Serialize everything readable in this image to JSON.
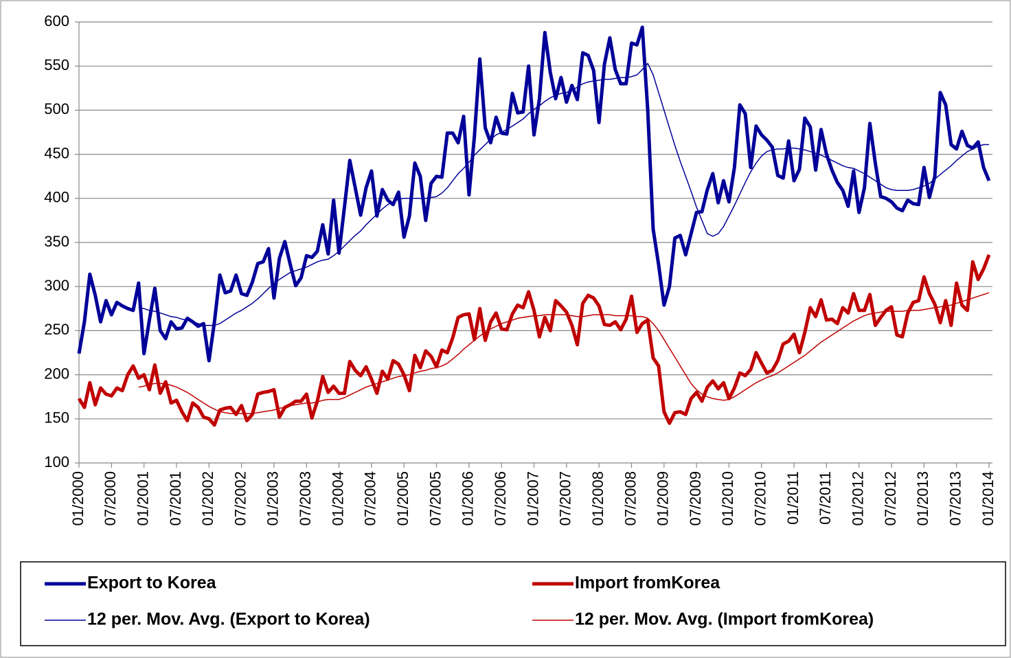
{
  "chart_data": {
    "type": "line",
    "categories": [
      "01/2000",
      null,
      null,
      null,
      null,
      null,
      "07/2000",
      null,
      null,
      null,
      null,
      null,
      "01/2001",
      null,
      null,
      null,
      null,
      null,
      "07/2001",
      null,
      null,
      null,
      null,
      null,
      "01/2002",
      null,
      null,
      null,
      null,
      null,
      "07/2002",
      null,
      null,
      null,
      null,
      null,
      "01/2003",
      null,
      null,
      null,
      null,
      null,
      "07/2003",
      null,
      null,
      null,
      null,
      null,
      "01/2004",
      null,
      null,
      null,
      null,
      null,
      "07/2004",
      null,
      null,
      null,
      null,
      null,
      "01/2005",
      null,
      null,
      null,
      null,
      null,
      "07/2005",
      null,
      null,
      null,
      null,
      null,
      "01/2006",
      null,
      null,
      null,
      null,
      null,
      "07/2006",
      null,
      null,
      null,
      null,
      null,
      "01/2007",
      null,
      null,
      null,
      null,
      null,
      "07/2007",
      null,
      null,
      null,
      null,
      null,
      "01/2008",
      null,
      null,
      null,
      null,
      null,
      "07/2008",
      null,
      null,
      null,
      null,
      null,
      "01/2009",
      null,
      null,
      null,
      null,
      null,
      "07/2009",
      null,
      null,
      null,
      null,
      null,
      "01/2010",
      null,
      null,
      null,
      null,
      null,
      "07/2010",
      null,
      null,
      null,
      null,
      null,
      "01/2011",
      null,
      null,
      null,
      null,
      null,
      "07/2011",
      null,
      null,
      null,
      null,
      null,
      "01/2012",
      null,
      null,
      null,
      null,
      null,
      "07/2012",
      null,
      null,
      null,
      null,
      null,
      "01/2013",
      null,
      null,
      null,
      null,
      null,
      "07/2013",
      null,
      null,
      null,
      null,
      null,
      "01/2014"
    ],
    "series": [
      {
        "name": "Export to Korea",
        "color": "#000099",
        "values": [
          224,
          260,
          314,
          290,
          260,
          284,
          268,
          282,
          278,
          275,
          273,
          304,
          224,
          262,
          298,
          250,
          241,
          260,
          252,
          253,
          264,
          260,
          255,
          258,
          216,
          260,
          313,
          293,
          295,
          313,
          292,
          290,
          305,
          326,
          328,
          343,
          287,
          332,
          351,
          325,
          301,
          310,
          335,
          333,
          340,
          370,
          337,
          398,
          338,
          390,
          443,
          412,
          381,
          412,
          431,
          380,
          410,
          398,
          393,
          407,
          356,
          380,
          440,
          425,
          375,
          417,
          425,
          424,
          474,
          474,
          463,
          493,
          404,
          470,
          558,
          480,
          463,
          492,
          474,
          473,
          519,
          497,
          498,
          550,
          472,
          513,
          588,
          543,
          513,
          537,
          509,
          528,
          512,
          565,
          562,
          545,
          486,
          552,
          582,
          546,
          530,
          530,
          576,
          574,
          594,
          500,
          365,
          325,
          279,
          300,
          355,
          358,
          336,
          360,
          384,
          385,
          410,
          428,
          395,
          420,
          396,
          435,
          506,
          496,
          435,
          482,
          472,
          466,
          458,
          426,
          423,
          465,
          420,
          433,
          491,
          481,
          432,
          478,
          450,
          432,
          418,
          409,
          391,
          431,
          384,
          412,
          485,
          440,
          402,
          400,
          396,
          389,
          386,
          398,
          394,
          393,
          435,
          401,
          425,
          520,
          506,
          461,
          456,
          476,
          460,
          457,
          464,
          435,
          420
        ]
      },
      {
        "name": "Import fromKorea",
        "color": "#c00000",
        "values": [
          173,
          163,
          191,
          166,
          185,
          178,
          176,
          185,
          182,
          200,
          210,
          196,
          200,
          183,
          211,
          179,
          192,
          168,
          171,
          158,
          148,
          168,
          163,
          152,
          150,
          143,
          160,
          162,
          163,
          155,
          165,
          148,
          155,
          178,
          180,
          181,
          183,
          152,
          163,
          166,
          170,
          170,
          178,
          151,
          170,
          198,
          180,
          187,
          179,
          179,
          215,
          205,
          199,
          209,
          195,
          179,
          204,
          195,
          216,
          212,
          200,
          182,
          222,
          208,
          227,
          221,
          209,
          228,
          225,
          242,
          265,
          268,
          269,
          240,
          275,
          239,
          260,
          270,
          252,
          251,
          269,
          279,
          276,
          294,
          273,
          243,
          265,
          250,
          284,
          278,
          271,
          256,
          234,
          281,
          290,
          287,
          278,
          257,
          256,
          260,
          251,
          263,
          289,
          248,
          258,
          262,
          219,
          210,
          158,
          145,
          157,
          158,
          155,
          173,
          180,
          170,
          186,
          193,
          184,
          191,
          173,
          185,
          202,
          199,
          206,
          225,
          213,
          202,
          205,
          216,
          235,
          238,
          246,
          225,
          248,
          276,
          266,
          285,
          262,
          263,
          258,
          276,
          270,
          292,
          273,
          273,
          291,
          256,
          265,
          273,
          277,
          245,
          243,
          270,
          282,
          284,
          311,
          292,
          280,
          259,
          284,
          256,
          304,
          279,
          273,
          328,
          308,
          320,
          336
        ]
      },
      {
        "name": "12 per. Mov. Avg. (Export to Korea)",
        "color": "#000099",
        "values": [
          null,
          null,
          null,
          null,
          null,
          null,
          null,
          null,
          null,
          null,
          null,
          276,
          275,
          273,
          272,
          270,
          268,
          266,
          265,
          263,
          262,
          260,
          258,
          256,
          256,
          256,
          258,
          262,
          266,
          270,
          273,
          277,
          281,
          286,
          292,
          298,
          303,
          308,
          312,
          316,
          318,
          320,
          322,
          325,
          328,
          330,
          331,
          335,
          340,
          346,
          352,
          358,
          363,
          370,
          376,
          382,
          388,
          393,
          396,
          399,
          400,
          400,
          400,
          400,
          400,
          401,
          402,
          406,
          412,
          420,
          428,
          434,
          441,
          449,
          455,
          461,
          467,
          472,
          475,
          478,
          482,
          486,
          490,
          496,
          501,
          505,
          510,
          514,
          517,
          519,
          520,
          523,
          526,
          530,
          532,
          533,
          534,
          535,
          535,
          536,
          537,
          537,
          538,
          540,
          546,
          553,
          540,
          520,
          500,
          480,
          460,
          442,
          425,
          408,
          390,
          375,
          360,
          357,
          360,
          368,
          380,
          392,
          405,
          418,
          430,
          440,
          448,
          453,
          455,
          456,
          456,
          457,
          457,
          456,
          455,
          453,
          451,
          449,
          446,
          443,
          440,
          437,
          435,
          434,
          431,
          428,
          424,
          420,
          416,
          412,
          410,
          409,
          409,
          409,
          410,
          412,
          414,
          417,
          422,
          427,
          432,
          437,
          443,
          448,
          453,
          456,
          459,
          461,
          461
        ]
      },
      {
        "name": "12 per. Mov. Avg. (Import fromKorea)",
        "color": "#c00000",
        "values": [
          null,
          null,
          null,
          null,
          null,
          null,
          null,
          null,
          null,
          null,
          null,
          186,
          187,
          189,
          190,
          190,
          190,
          188,
          186,
          183,
          180,
          176,
          172,
          168,
          164,
          161,
          158,
          157,
          156,
          156,
          156,
          156,
          156,
          157,
          158,
          159,
          160,
          162,
          163,
          165,
          166,
          167,
          168,
          168,
          169,
          171,
          172,
          172,
          172,
          174,
          177,
          180,
          183,
          186,
          188,
          190,
          192,
          194,
          196,
          198,
          199,
          200,
          202,
          204,
          205,
          207,
          208,
          210,
          213,
          218,
          223,
          229,
          234,
          239,
          244,
          248,
          252,
          255,
          258,
          260,
          262,
          264,
          265,
          266,
          267,
          267,
          268,
          268,
          268,
          268,
          268,
          267,
          266,
          266,
          267,
          268,
          268,
          268,
          268,
          267,
          267,
          267,
          267,
          266,
          266,
          264,
          258,
          250,
          240,
          230,
          220,
          210,
          200,
          190,
          183,
          178,
          175,
          173,
          172,
          171,
          172,
          175,
          179,
          183,
          187,
          191,
          194,
          197,
          199,
          202,
          206,
          210,
          214,
          218,
          222,
          227,
          232,
          237,
          241,
          245,
          249,
          253,
          257,
          261,
          264,
          267,
          269,
          270,
          271,
          272,
          272,
          272,
          272,
          273,
          273,
          273,
          274,
          275,
          276,
          277,
          278,
          279,
          281,
          283,
          285,
          287,
          289,
          291,
          293
        ]
      }
    ],
    "ylim": [
      100,
      600
    ],
    "yticks": [
      100,
      150,
      200,
      250,
      300,
      350,
      400,
      450,
      500,
      550,
      600
    ],
    "grid": true
  }
}
